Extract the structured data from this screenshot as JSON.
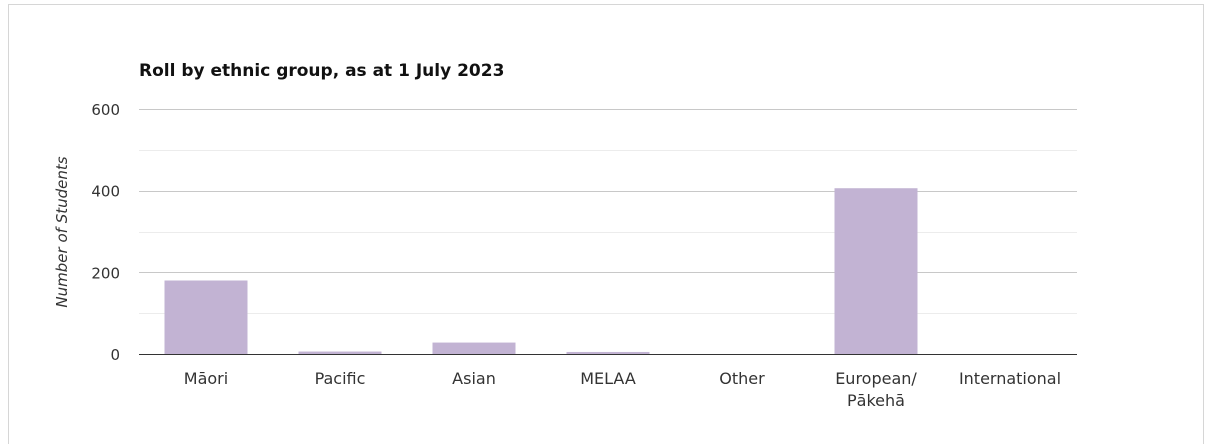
{
  "chart_data": {
    "type": "bar",
    "title": "Roll by ethnic group, as at 1 July 2023",
    "xlabel": "",
    "ylabel": "Number of Students",
    "ylim": [
      0,
      600
    ],
    "yticks": [
      0,
      200,
      400,
      600
    ],
    "minor_grid_step": 100,
    "grid": true,
    "legend": "none",
    "bar_color": "#c2b3d3",
    "categories": [
      "Māori",
      "Pacific",
      "Asian",
      "MELAA",
      "Other",
      "European/\nPākehā",
      "International"
    ],
    "values": [
      180,
      6,
      28,
      5,
      0,
      406,
      0
    ]
  }
}
